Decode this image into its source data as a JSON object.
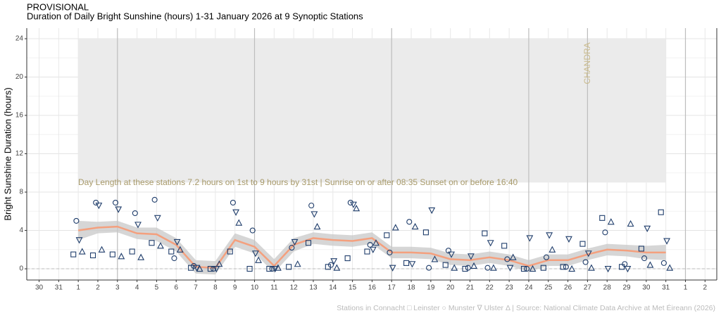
{
  "chart_data": {
    "type": "scatter",
    "status": "PROVISIONAL",
    "title": "Duration of Daily Bright Sunshine (hours) 1-31 January 2026 at 9 Synoptic Stations",
    "ylabel": "Bright Sunshine Duration (hours)",
    "annotation": "Day Length at these stations 7.2 hours on 1st to 9 hours by 31st | Sunrise on or after 08:35 Sunset on or before 16:40",
    "marker_text": "CHANDRA",
    "caption": "Stations in Connacht □ Leinster ○ Munster ∇ Ulster Δ | Source: National Climate Data Archive at Met Éireann (2026)",
    "xlim": [
      -1.63,
      33.6
    ],
    "ylim": [
      -1.17,
      25.1
    ],
    "xticks": [
      {
        "value": -1,
        "label": "30"
      },
      {
        "value": 0,
        "label": "31"
      },
      1,
      2,
      3,
      4,
      5,
      6,
      7,
      8,
      9,
      10,
      11,
      12,
      13,
      14,
      15,
      16,
      17,
      18,
      19,
      20,
      21,
      22,
      23,
      24,
      25,
      26,
      27,
      28,
      29,
      30,
      31,
      {
        "value": 32,
        "label": "1"
      },
      {
        "value": 33,
        "label": "2"
      }
    ],
    "yticks": [
      0,
      4,
      8,
      12,
      16,
      20,
      24
    ],
    "grid": true,
    "vlines": [
      3,
      10,
      17,
      24,
      27,
      32
    ],
    "hline": 0,
    "shade": {
      "x": [
        1,
        31
      ],
      "y": [
        9,
        24
      ],
      "color": "#ebebeb"
    },
    "series": [
      {
        "name": "Connacht",
        "marker": "square",
        "color": "#1f3d6b",
        "x": [
          0.75,
          1.75,
          2.75,
          3.75,
          4.75,
          5.75,
          6.75,
          7.75,
          8.75,
          9.75,
          10.75,
          11.75,
          12.75,
          13.75,
          14.75,
          15.75,
          16.75,
          17.75,
          18.75,
          19.75,
          20.75,
          21.75,
          22.75,
          23.75,
          24.75,
          25.75,
          26.75,
          27.75,
          28.75,
          29.75,
          30.75
        ],
        "values": [
          1.5,
          1.4,
          1.5,
          1.8,
          2.7,
          1.8,
          0.1,
          0.0,
          1.8,
          0.0,
          0.0,
          0.2,
          2.7,
          0.2,
          1.1,
          1.8,
          3.5,
          0.6,
          3.8,
          0.4,
          0.0,
          3.7,
          2.4,
          0.0,
          0.1,
          0.2,
          2.6,
          5.3,
          0.2,
          2.1,
          5.9
        ]
      },
      {
        "name": "Leinster",
        "marker": "circle",
        "color": "#1f3d6b",
        "x": [
          0.9,
          1.9,
          2.9,
          3.9,
          4.9,
          5.9,
          6.9,
          7.9,
          8.9,
          9.9,
          10.9,
          11.9,
          12.9,
          13.9,
          14.9,
          15.9,
          16.9,
          17.9,
          18.9,
          19.9,
          20.9,
          21.9,
          22.9,
          23.9,
          24.9,
          25.9,
          26.9,
          27.9,
          28.9,
          29.9,
          30.9
        ],
        "values": [
          5.0,
          6.9,
          6.9,
          5.8,
          7.2,
          1.1,
          0.3,
          0.0,
          6.9,
          4.0,
          0.0,
          2.2,
          6.6,
          0.4,
          6.9,
          2.5,
          1.7,
          4.9,
          0.1,
          1.9,
          0.1,
          0.1,
          1.0,
          0.0,
          1.2,
          0.2,
          0.7,
          3.8,
          0.5,
          1.1,
          0.6
        ]
      },
      {
        "name": "Munster",
        "marker": "triangle-down",
        "color": "#1f3d6b",
        "x": [
          1.05,
          2.05,
          3.05,
          4.05,
          5.05,
          6.05,
          7.05,
          8.05,
          9.05,
          10.05,
          11.05,
          12.05,
          13.05,
          14.05,
          15.05,
          16.05,
          17.05,
          18.05,
          19.05,
          20.05,
          21.05,
          22.05,
          23.05,
          24.05,
          25.05,
          26.05,
          27.05,
          28.05,
          29.05,
          30.05,
          31.05
        ],
        "values": [
          3.0,
          6.6,
          6.2,
          4.6,
          5.3,
          2.8,
          0.1,
          0.0,
          5.9,
          1.6,
          0.0,
          2.8,
          5.7,
          0.8,
          6.7,
          2.0,
          0.1,
          0.5,
          6.1,
          1.5,
          1.3,
          2.7,
          0.1,
          3.2,
          3.5,
          3.1,
          1.6,
          0.0,
          0.0,
          4.2,
          2.9
        ]
      },
      {
        "name": "Ulster",
        "marker": "triangle-up",
        "color": "#1f3d6b",
        "x": [
          1.2,
          2.2,
          3.2,
          4.2,
          5.2,
          6.2,
          7.2,
          8.2,
          9.2,
          10.2,
          11.2,
          12.2,
          13.2,
          14.2,
          15.2,
          16.2,
          17.2,
          18.2,
          19.2,
          20.2,
          21.2,
          22.2,
          23.2,
          24.2,
          25.2,
          26.2,
          27.2,
          28.2,
          29.2,
          30.2,
          31.2
        ],
        "values": [
          1.8,
          2.0,
          1.3,
          1.2,
          2.4,
          2.0,
          0.0,
          0.5,
          4.8,
          0.9,
          0.1,
          0.5,
          4.4,
          0.1,
          6.3,
          2.7,
          4.3,
          4.4,
          1.0,
          0.1,
          0.3,
          0.1,
          1.2,
          0.0,
          2.0,
          0.0,
          0.1,
          4.9,
          4.7,
          0.4,
          0.1
        ]
      }
    ],
    "smooth": {
      "color": "#f4a07e",
      "band_color": "#c8c8c8",
      "x": [
        1,
        2,
        3,
        4,
        5,
        6,
        7,
        8,
        9,
        10,
        11,
        12,
        13,
        14,
        15,
        16,
        17,
        18,
        19,
        20,
        21,
        22,
        23,
        24,
        25,
        26,
        27,
        28,
        29,
        30,
        31
      ],
      "values": [
        4.0,
        4.3,
        4.4,
        3.7,
        3.6,
        2.5,
        0.2,
        0.1,
        3.0,
        2.3,
        0.3,
        2.5,
        3.2,
        3.0,
        2.9,
        3.2,
        1.7,
        1.7,
        1.6,
        1.0,
        0.9,
        1.2,
        0.9,
        0.3,
        0.9,
        0.9,
        1.5,
        2.0,
        1.9,
        1.7,
        1.7
      ],
      "lower": [
        3.0,
        3.7,
        3.8,
        3.1,
        2.9,
        1.8,
        -0.5,
        -0.6,
        2.3,
        1.6,
        -0.4,
        1.8,
        2.6,
        2.4,
        2.3,
        2.6,
        1.1,
        1.1,
        1.0,
        0.4,
        0.3,
        0.6,
        0.3,
        -0.3,
        0.3,
        0.3,
        0.9,
        1.4,
        1.3,
        1.0,
        0.9
      ],
      "upper": [
        5.0,
        4.9,
        5.0,
        4.3,
        4.3,
        3.2,
        0.9,
        0.8,
        3.7,
        3.0,
        1.0,
        3.2,
        3.8,
        3.6,
        3.5,
        3.8,
        2.3,
        2.3,
        2.2,
        1.6,
        1.5,
        1.8,
        1.5,
        0.9,
        1.5,
        1.5,
        2.1,
        2.6,
        2.5,
        2.4,
        2.5
      ]
    }
  }
}
